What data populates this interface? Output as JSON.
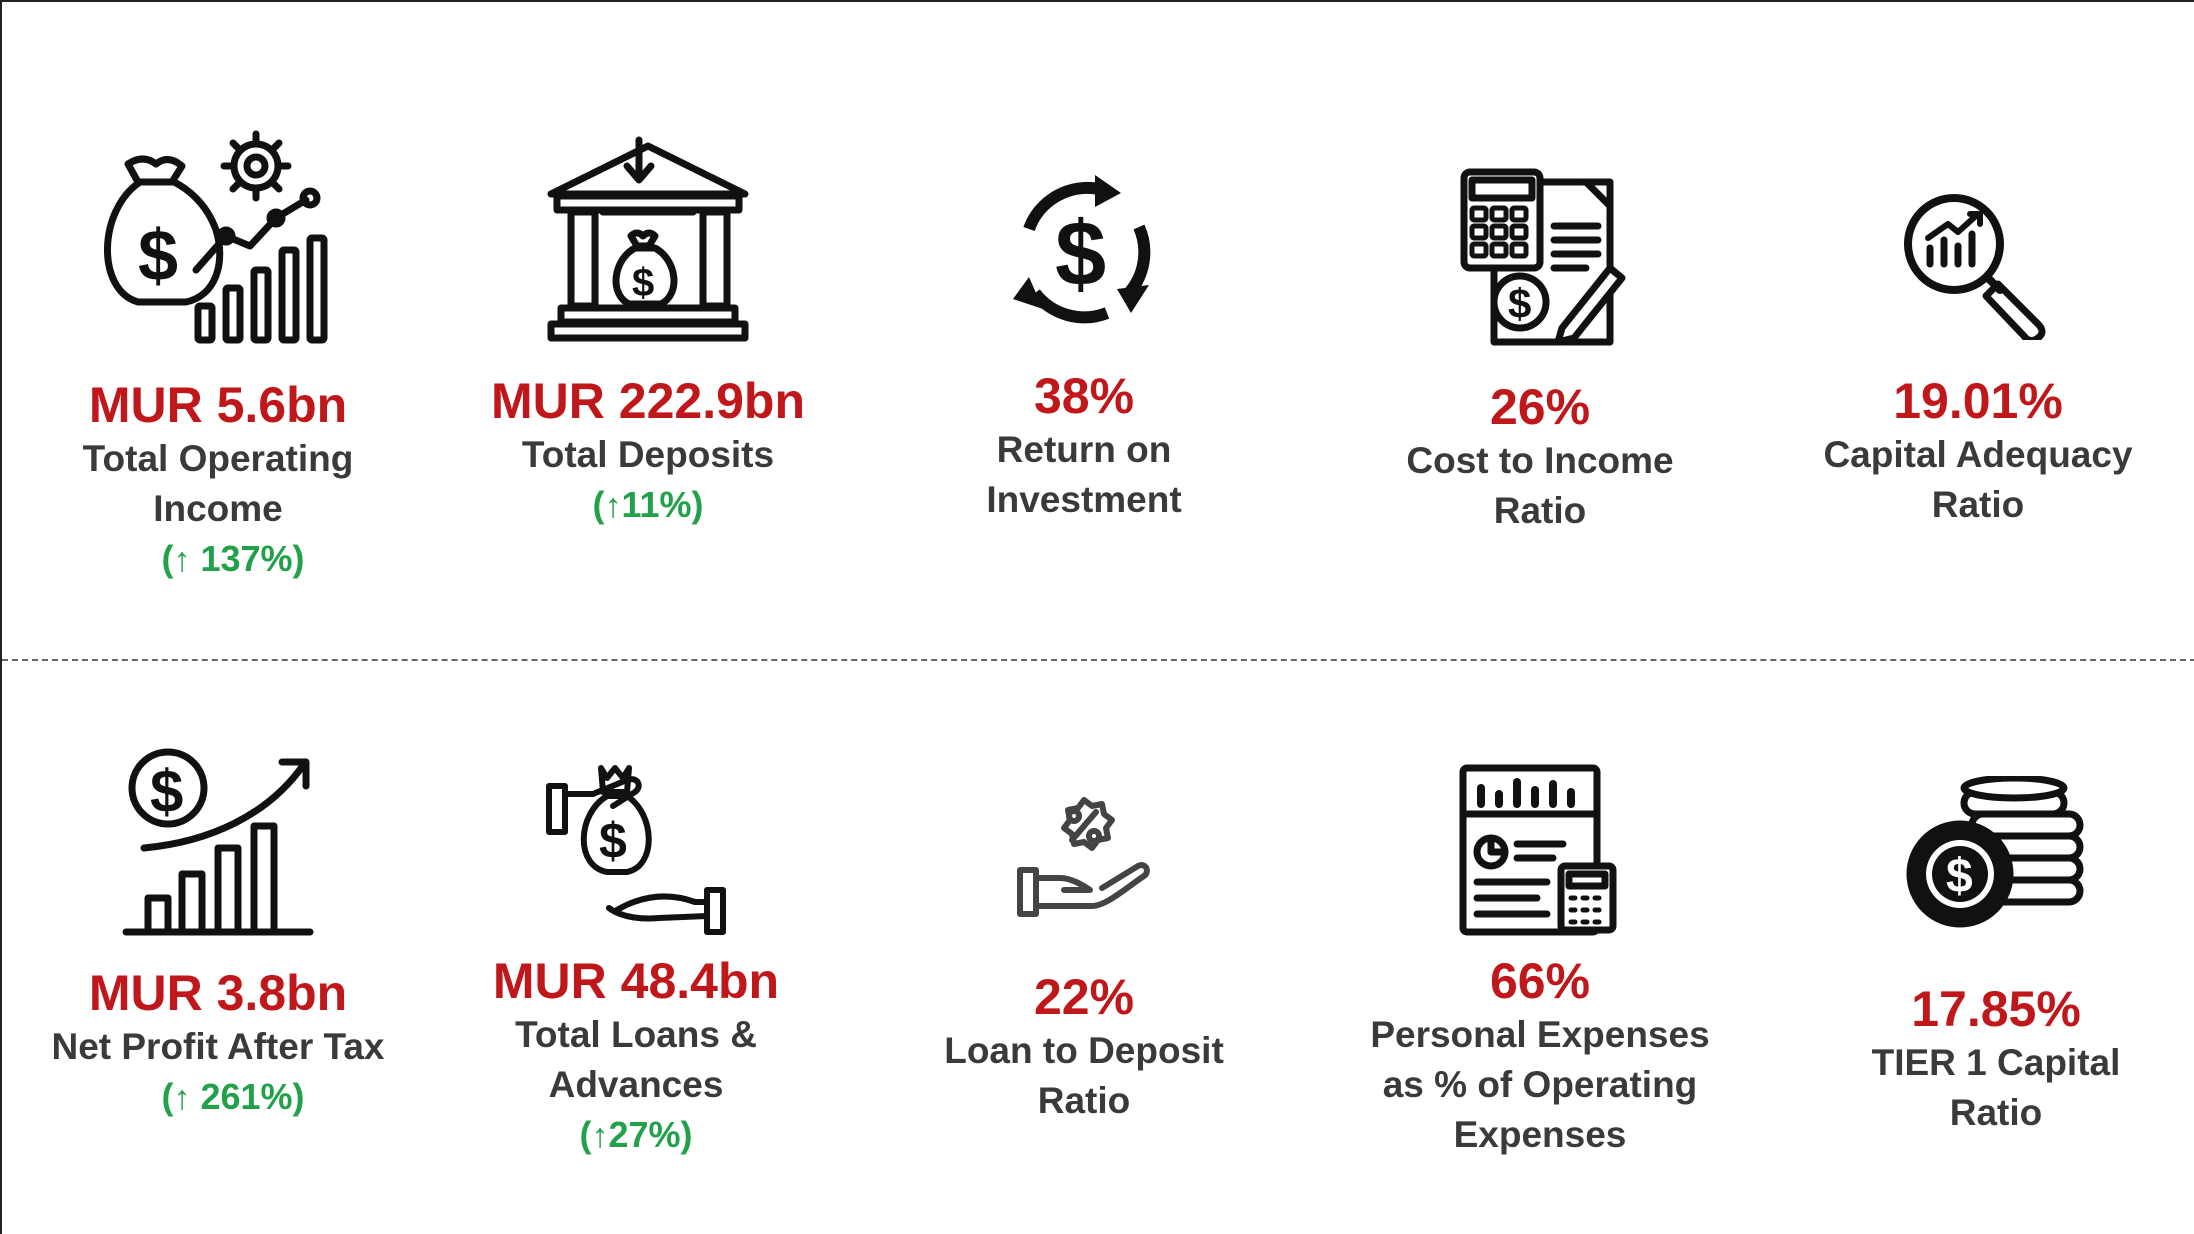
{
  "accent_color": "#c0171b",
  "positive_color": "#22a04a",
  "kpis_top": [
    {
      "icon": "money-bag-growth-icon",
      "value": "MUR 5.6bn",
      "label": "Total Operating\nIncome",
      "change_open": "(",
      "arrow": "↑",
      "change": "137%)"
    },
    {
      "icon": "bank-deposit-icon",
      "value": "MUR 222.9bn",
      "label": "Total Deposits",
      "change_open": "(",
      "arrow": "↑",
      "change": "11%)"
    },
    {
      "icon": "dollar-cycle-icon",
      "value": "38%",
      "label": "Return on\nInvestment"
    },
    {
      "icon": "calculator-document-icon",
      "value": "26%",
      "label": "Cost to Income\nRatio"
    },
    {
      "icon": "magnifier-chart-icon",
      "value": "19.01%",
      "label": "Capital Adequacy\nRatio"
    }
  ],
  "kpis_bottom": [
    {
      "icon": "profit-growth-icon",
      "value": "MUR 3.8bn",
      "label": "Net Profit After Tax",
      "change_open": "(",
      "arrow": "↑",
      "change": "261%)"
    },
    {
      "icon": "loan-hand-icon",
      "value": "MUR 48.4bn",
      "label": "Total Loans &\nAdvances",
      "change_open": "(",
      "arrow": "↑",
      "change": "27%)"
    },
    {
      "icon": "percent-hand-icon",
      "value": "22%",
      "label": "Loan to Deposit\nRatio"
    },
    {
      "icon": "expense-report-icon",
      "value": "66%",
      "label": "Personal Expenses\nas % of Operating\nExpenses"
    },
    {
      "icon": "coin-stack-icon",
      "value": "17.85%",
      "label": "TIER 1 Capital\nRatio"
    }
  ]
}
